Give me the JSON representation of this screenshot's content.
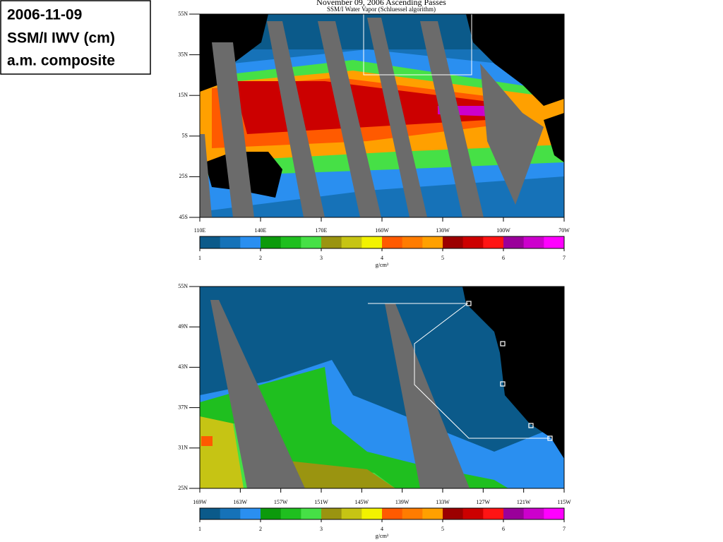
{
  "header": {
    "lines": [
      "2006-11-09",
      "SSM/I IWV (cm)",
      "a.m. composite"
    ]
  },
  "colorbar": {
    "colors": [
      "#0b5a8a",
      "#1672b8",
      "#2a8ff0",
      "#0c9a0c",
      "#1fbf1f",
      "#46e046",
      "#9a9410",
      "#c6c414",
      "#f2f200",
      "#ff5a00",
      "#ff7c00",
      "#ffa000",
      "#9c0000",
      "#cc0000",
      "#ff1414",
      "#9a009a",
      "#cc00cc",
      "#ff00ff"
    ]
  },
  "maps": [
    {
      "title": "November 09, 2006   Ascending Passes",
      "subtitle": "SSM/I Water Vapor (Schluessel algorithm)",
      "lat_labels": [
        "55N",
        "35N",
        "15N",
        "5S",
        "25S",
        "45S"
      ],
      "lon_labels": [
        "110E",
        "140E",
        "170E",
        "160W",
        "130W",
        "100W",
        "70W"
      ],
      "colorbar_ticks": [
        1,
        2,
        3,
        4,
        5,
        6,
        7
      ],
      "unit": "g/cm³"
    },
    {
      "lat_labels": [
        "55N",
        "49N",
        "43N",
        "37N",
        "31N",
        "25N"
      ],
      "lon_labels": [
        "169W",
        "163W",
        "157W",
        "151W",
        "145W",
        "139W",
        "133W",
        "127W",
        "121W",
        "115W"
      ],
      "colorbar_ticks": [
        1,
        2,
        3,
        4,
        5,
        6,
        7
      ],
      "unit": "g/cm³"
    }
  ]
}
